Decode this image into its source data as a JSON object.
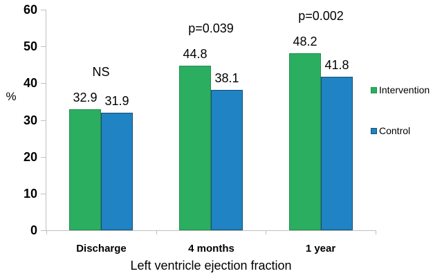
{
  "chart_data": {
    "type": "bar",
    "title": "",
    "xlabel": "Left ventricle ejection fraction",
    "ylabel": "%",
    "ylim": [
      0,
      60
    ],
    "yticks": [
      0,
      10,
      20,
      30,
      40,
      50,
      60
    ],
    "categories": [
      "Discharge",
      "4 months",
      "1 year"
    ],
    "series": [
      {
        "name": "Intervention",
        "color": "#2BAE60",
        "border_color": "#1E8F4D",
        "values": [
          32.9,
          44.8,
          48.2
        ]
      },
      {
        "name": "Control",
        "color": "#1F83C4",
        "border_color": "#174F75",
        "values": [
          31.9,
          38.1,
          41.8
        ]
      }
    ],
    "annotations": [
      {
        "category": "Discharge",
        "text": "NS"
      },
      {
        "category": "4 months",
        "text": "p=0.039"
      },
      {
        "category": "1 year",
        "text": "p=0.002"
      }
    ],
    "legend_position": "right",
    "grid": false,
    "axis_color": "#BFBFBF",
    "text_color": "#000000"
  }
}
